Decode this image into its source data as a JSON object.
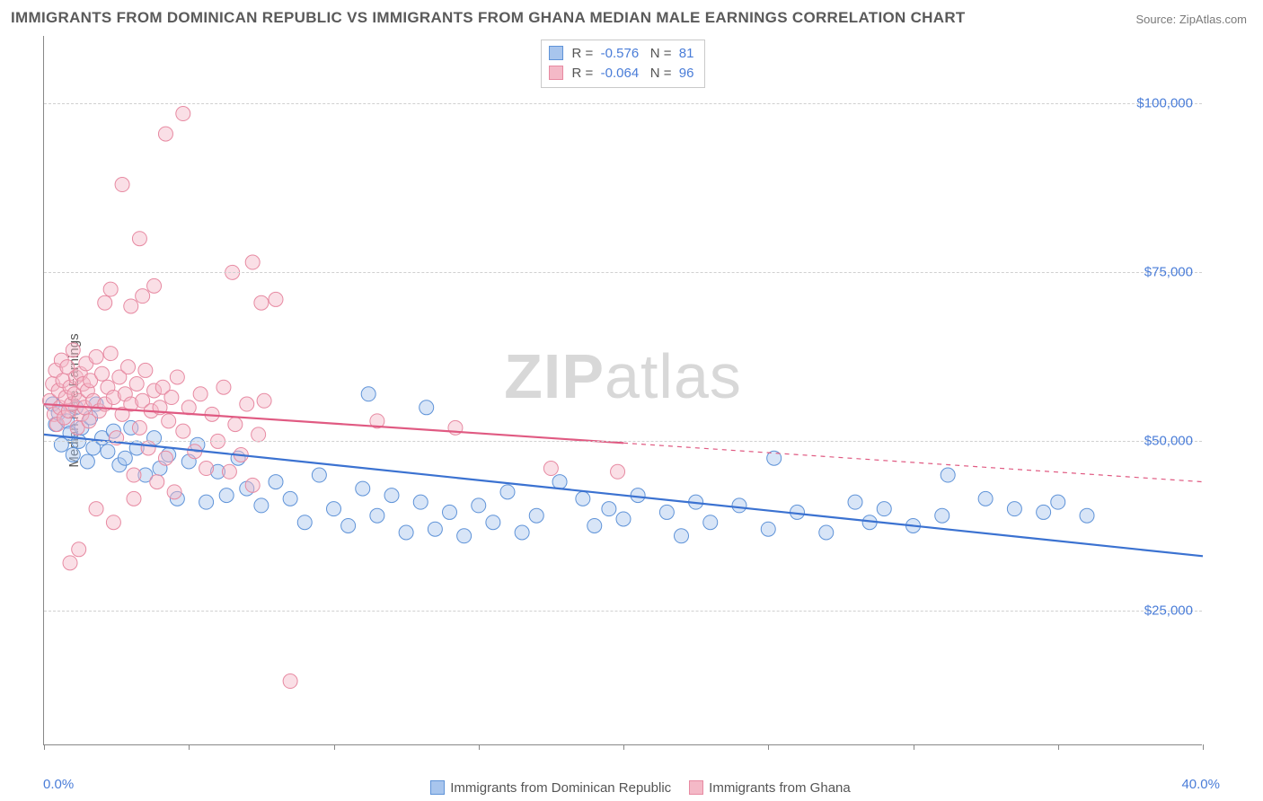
{
  "title": "IMMIGRANTS FROM DOMINICAN REPUBLIC VS IMMIGRANTS FROM GHANA MEDIAN MALE EARNINGS CORRELATION CHART",
  "source": "Source: ZipAtlas.com",
  "watermark_bold": "ZIP",
  "watermark_light": "atlas",
  "y_axis_label": "Median Male Earnings",
  "chart": {
    "type": "scatter",
    "background_color": "#ffffff",
    "grid_color": "#d0d0d0",
    "axis_color": "#888888",
    "tick_label_color": "#4a7dd8",
    "axis_label_color": "#555555",
    "xlim": [
      0,
      40
    ],
    "ylim": [
      5000,
      110000
    ],
    "x_min_label": "0.0%",
    "x_max_label": "40.0%",
    "y_ticks": [
      {
        "value": 25000,
        "label": "$25,000"
      },
      {
        "value": 50000,
        "label": "$50,000"
      },
      {
        "value": 75000,
        "label": "$75,000"
      },
      {
        "value": 100000,
        "label": "$100,000"
      }
    ],
    "x_tick_positions": [
      0,
      5,
      10,
      15,
      20,
      25,
      30,
      35,
      40
    ],
    "marker_radius": 8,
    "marker_opacity": 0.45,
    "line_width_solid": 2.2,
    "line_width_dash": 1.2,
    "series": [
      {
        "key": "dr",
        "label": "Immigrants from Dominican Republic",
        "color_fill": "#a8c5ed",
        "color_stroke": "#5f93d8",
        "line_color": "#3b72d1",
        "R": "-0.576",
        "N": "81",
        "trend": {
          "y_at_xmin": 51000,
          "y_at_xmax": 33000,
          "solid_until_x": 40
        },
        "points": [
          [
            0.3,
            55500
          ],
          [
            0.4,
            52500
          ],
          [
            0.5,
            54200
          ],
          [
            0.6,
            49500
          ],
          [
            0.8,
            53000
          ],
          [
            0.9,
            51200
          ],
          [
            1.0,
            48000
          ],
          [
            1.1,
            55000
          ],
          [
            1.2,
            50000
          ],
          [
            1.3,
            52000
          ],
          [
            1.5,
            47000
          ],
          [
            1.6,
            53500
          ],
          [
            1.7,
            49000
          ],
          [
            1.8,
            55500
          ],
          [
            2.0,
            50500
          ],
          [
            2.2,
            48500
          ],
          [
            2.4,
            51500
          ],
          [
            2.6,
            46500
          ],
          [
            2.8,
            47500
          ],
          [
            3.0,
            52000
          ],
          [
            3.2,
            49000
          ],
          [
            3.5,
            45000
          ],
          [
            3.8,
            50500
          ],
          [
            4.0,
            46000
          ],
          [
            4.3,
            48000
          ],
          [
            4.6,
            41500
          ],
          [
            5.0,
            47000
          ],
          [
            5.3,
            49500
          ],
          [
            5.6,
            41000
          ],
          [
            6.0,
            45500
          ],
          [
            6.3,
            42000
          ],
          [
            6.7,
            47500
          ],
          [
            7.0,
            43000
          ],
          [
            7.5,
            40500
          ],
          [
            8.0,
            44000
          ],
          [
            8.5,
            41500
          ],
          [
            9.0,
            38000
          ],
          [
            9.5,
            45000
          ],
          [
            10.0,
            40000
          ],
          [
            10.5,
            37500
          ],
          [
            11.0,
            43000
          ],
          [
            11.2,
            57000
          ],
          [
            11.5,
            39000
          ],
          [
            12.0,
            42000
          ],
          [
            12.5,
            36500
          ],
          [
            13.0,
            41000
          ],
          [
            13.2,
            55000
          ],
          [
            13.5,
            37000
          ],
          [
            14.0,
            39500
          ],
          [
            14.5,
            36000
          ],
          [
            15.0,
            40500
          ],
          [
            15.5,
            38000
          ],
          [
            16.0,
            42500
          ],
          [
            16.5,
            36500
          ],
          [
            17.0,
            39000
          ],
          [
            17.8,
            44000
          ],
          [
            18.6,
            41500
          ],
          [
            19.0,
            37500
          ],
          [
            19.5,
            40000
          ],
          [
            20.0,
            38500
          ],
          [
            20.5,
            42000
          ],
          [
            21.5,
            39500
          ],
          [
            22.0,
            36000
          ],
          [
            22.5,
            41000
          ],
          [
            23.0,
            38000
          ],
          [
            24.0,
            40500
          ],
          [
            25.0,
            37000
          ],
          [
            25.2,
            47500
          ],
          [
            26.0,
            39500
          ],
          [
            27.0,
            36500
          ],
          [
            28.0,
            41000
          ],
          [
            28.5,
            38000
          ],
          [
            29.0,
            40000
          ],
          [
            30.0,
            37500
          ],
          [
            31.0,
            39000
          ],
          [
            31.2,
            45000
          ],
          [
            32.5,
            41500
          ],
          [
            33.5,
            40000
          ],
          [
            34.5,
            39500
          ],
          [
            35.0,
            41000
          ],
          [
            36.0,
            39000
          ]
        ]
      },
      {
        "key": "gh",
        "label": "Immigrants from Ghana",
        "color_fill": "#f4b9c7",
        "color_stroke": "#e78aa2",
        "line_color": "#e05a82",
        "R": "-0.064",
        "N": "96",
        "trend": {
          "y_at_xmin": 55500,
          "y_at_xmax": 44000,
          "solid_until_x": 20
        },
        "points": [
          [
            0.2,
            56000
          ],
          [
            0.3,
            58500
          ],
          [
            0.35,
            54000
          ],
          [
            0.4,
            60500
          ],
          [
            0.45,
            52500
          ],
          [
            0.5,
            57500
          ],
          [
            0.55,
            55000
          ],
          [
            0.6,
            62000
          ],
          [
            0.65,
            59000
          ],
          [
            0.7,
            53500
          ],
          [
            0.75,
            56500
          ],
          [
            0.8,
            61000
          ],
          [
            0.85,
            54500
          ],
          [
            0.9,
            58000
          ],
          [
            0.95,
            55500
          ],
          [
            1.0,
            63500
          ],
          [
            1.05,
            57000
          ],
          [
            1.1,
            59500
          ],
          [
            1.15,
            52000
          ],
          [
            1.2,
            56000
          ],
          [
            1.25,
            60000
          ],
          [
            1.3,
            54000
          ],
          [
            1.35,
            58500
          ],
          [
            1.4,
            55000
          ],
          [
            1.45,
            61500
          ],
          [
            1.5,
            57500
          ],
          [
            1.55,
            53000
          ],
          [
            1.6,
            59000
          ],
          [
            1.7,
            56000
          ],
          [
            1.8,
            62500
          ],
          [
            1.9,
            54500
          ],
          [
            2.0,
            60000
          ],
          [
            2.1,
            55500
          ],
          [
            2.2,
            58000
          ],
          [
            2.3,
            63000
          ],
          [
            2.4,
            56500
          ],
          [
            2.5,
            50500
          ],
          [
            2.6,
            59500
          ],
          [
            2.7,
            54000
          ],
          [
            2.8,
            57000
          ],
          [
            2.9,
            61000
          ],
          [
            3.0,
            55500
          ],
          [
            3.1,
            45000
          ],
          [
            3.2,
            58500
          ],
          [
            3.3,
            52000
          ],
          [
            3.4,
            56000
          ],
          [
            3.5,
            60500
          ],
          [
            3.6,
            49000
          ],
          [
            3.7,
            54500
          ],
          [
            3.8,
            57500
          ],
          [
            3.9,
            44000
          ],
          [
            4.0,
            55000
          ],
          [
            4.1,
            58000
          ],
          [
            4.2,
            47500
          ],
          [
            4.3,
            53000
          ],
          [
            4.4,
            56500
          ],
          [
            4.5,
            42500
          ],
          [
            4.6,
            59500
          ],
          [
            4.8,
            51500
          ],
          [
            5.0,
            55000
          ],
          [
            5.2,
            48500
          ],
          [
            5.4,
            57000
          ],
          [
            5.6,
            46000
          ],
          [
            5.8,
            54000
          ],
          [
            6.0,
            50000
          ],
          [
            6.2,
            58000
          ],
          [
            6.4,
            45500
          ],
          [
            6.6,
            52500
          ],
          [
            6.8,
            48000
          ],
          [
            7.0,
            55500
          ],
          [
            7.2,
            43500
          ],
          [
            7.4,
            51000
          ],
          [
            7.6,
            56000
          ],
          [
            2.1,
            70500
          ],
          [
            2.3,
            72500
          ],
          [
            3.0,
            70000
          ],
          [
            3.4,
            71500
          ],
          [
            3.8,
            73000
          ],
          [
            6.5,
            75000
          ],
          [
            7.2,
            76500
          ],
          [
            7.5,
            70500
          ],
          [
            8.0,
            71000
          ],
          [
            2.7,
            88000
          ],
          [
            3.3,
            80000
          ],
          [
            4.2,
            95500
          ],
          [
            4.8,
            98500
          ],
          [
            0.9,
            32000
          ],
          [
            1.2,
            34000
          ],
          [
            1.8,
            40000
          ],
          [
            2.4,
            38000
          ],
          [
            3.1,
            41500
          ],
          [
            8.5,
            14500
          ],
          [
            11.5,
            53000
          ],
          [
            14.2,
            52000
          ],
          [
            17.5,
            46000
          ],
          [
            19.8,
            45500
          ]
        ]
      }
    ]
  },
  "legend_label_r": "R =",
  "legend_label_n": "N ="
}
